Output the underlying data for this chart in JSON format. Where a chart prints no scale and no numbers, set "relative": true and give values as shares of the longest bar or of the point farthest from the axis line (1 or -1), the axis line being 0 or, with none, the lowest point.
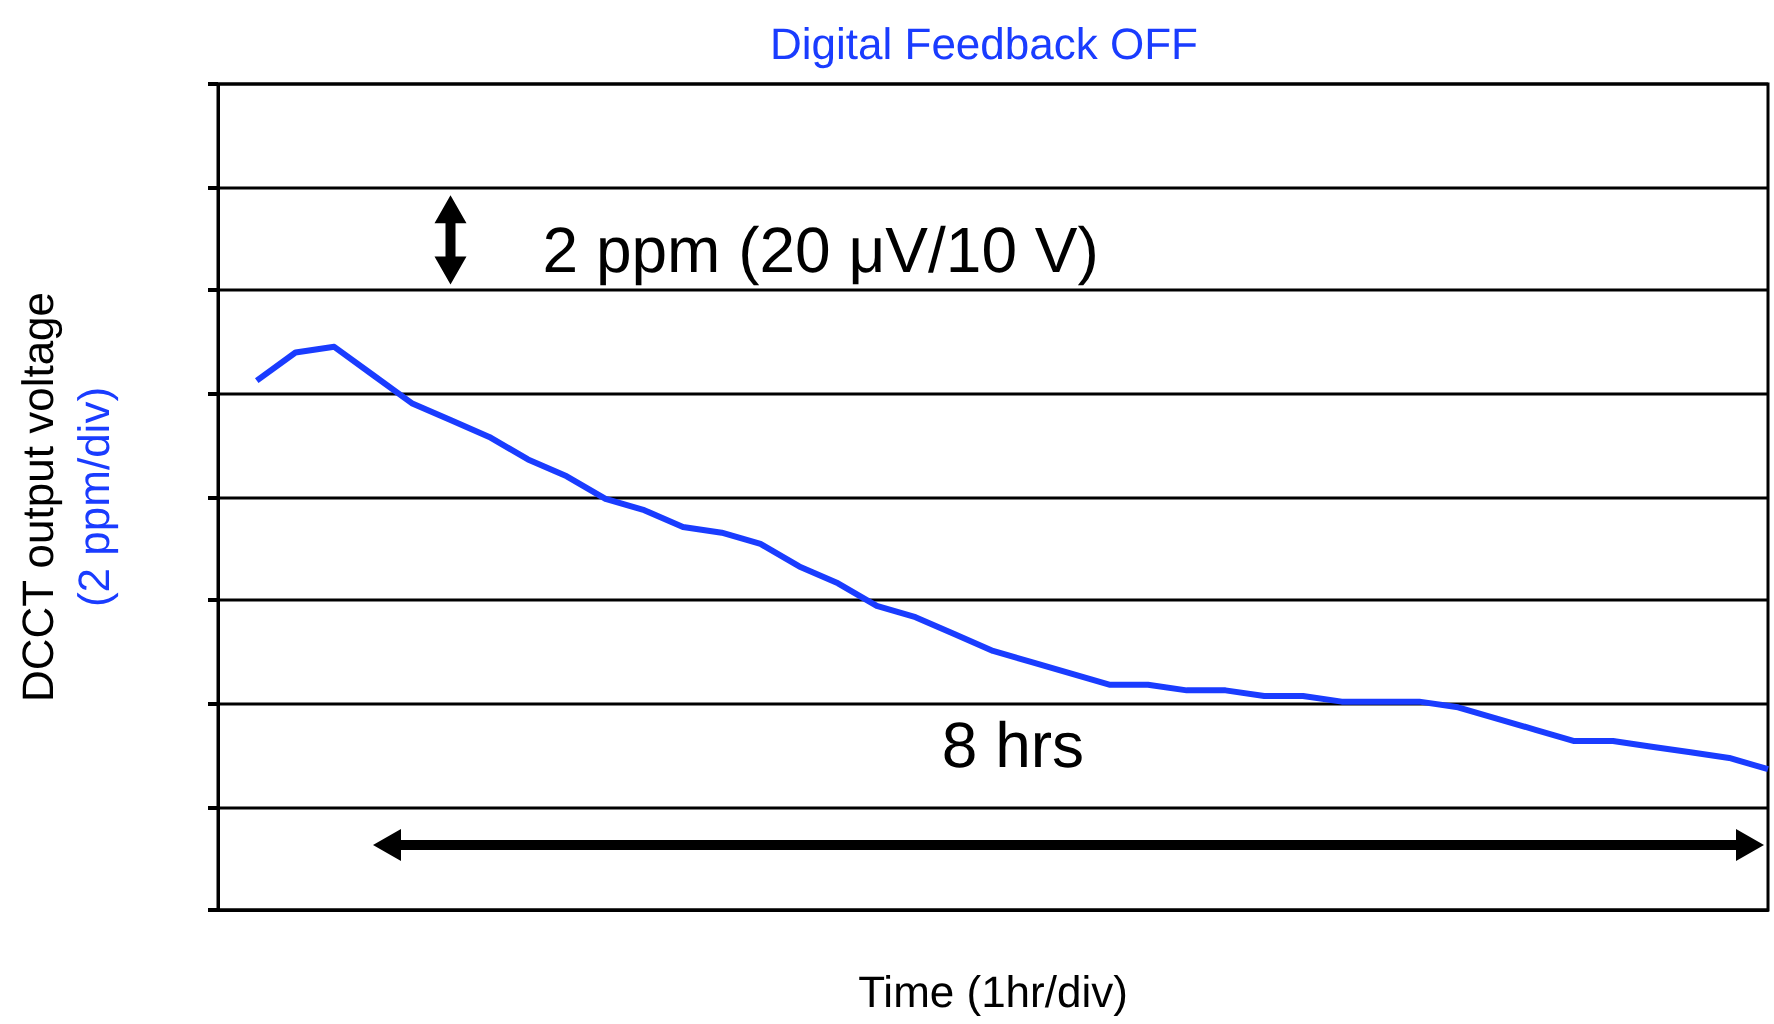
{
  "chart_data": {
    "type": "line",
    "title": "Digital Feedback OFF",
    "xlabel": "Time (1hr/div)",
    "ylabel": "DCCT output voltage\n(2 ppm/div)",
    "relative": true,
    "grid": "y",
    "categories": [
      null,
      null,
      null,
      null,
      null,
      null,
      null,
      null,
      null,
      null,
      null,
      null,
      null,
      null,
      null,
      null,
      null,
      null,
      null,
      null,
      null,
      null,
      null,
      null,
      null,
      null,
      null,
      null,
      null,
      null,
      null,
      null,
      null,
      null,
      null,
      null,
      null,
      null,
      null,
      null,
      null
    ],
    "series": [
      {
        "color": "#1a3cff",
        "values": [
          null,
          0.94,
          0.99,
          1.0,
          0.95,
          0.9,
          0.87,
          0.84,
          0.8,
          0.77,
          0.73,
          0.71,
          0.68,
          0.67,
          0.65,
          0.61,
          0.58,
          0.54,
          0.52,
          0.49,
          0.46,
          0.44,
          0.42,
          0.4,
          0.4,
          0.39,
          0.39,
          0.38,
          0.38,
          0.37,
          0.37,
          0.37,
          0.36,
          0.34,
          0.32,
          0.3,
          0.3,
          0.29,
          0.28,
          0.27,
          0.25
        ]
      }
    ],
    "annotations": [
      "2 ppm (20 μV/10 V)",
      "8 hrs"
    ]
  }
}
